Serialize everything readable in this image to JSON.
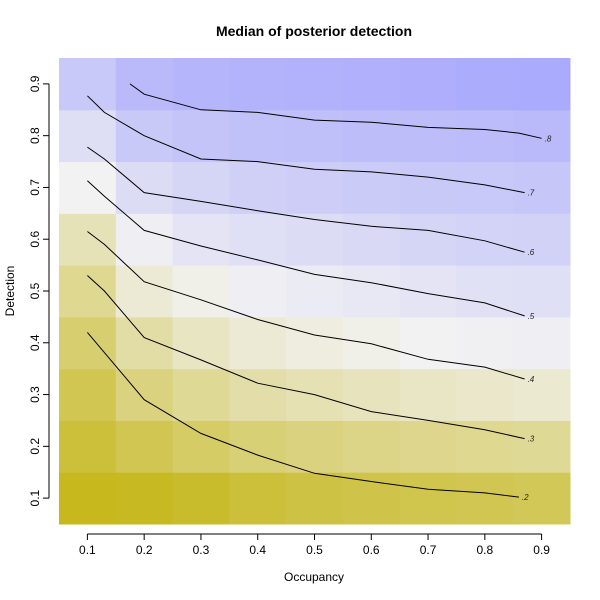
{
  "chart_data": {
    "type": "heatmap",
    "title": "Median of posterior detection",
    "xlabel": "Occupancy",
    "ylabel": "Detection",
    "xlim": [
      0.05,
      0.95
    ],
    "ylim": [
      0.05,
      0.95
    ],
    "x_ticks": [
      "0.1",
      "0.2",
      "0.3",
      "0.4",
      "0.5",
      "0.6",
      "0.7",
      "0.8",
      "0.9"
    ],
    "y_ticks": [
      "0.1",
      "0.2",
      "0.3",
      "0.4",
      "0.5",
      "0.6",
      "0.7",
      "0.8",
      "0.9"
    ],
    "grid": false,
    "legend": "none",
    "colors": {
      "low": "#c0b000",
      "mid": "#f2f2f2",
      "high": "#9d9dff"
    },
    "cell_x": [
      0.1,
      0.2,
      0.3,
      0.4,
      0.5,
      0.6,
      0.7,
      0.8,
      0.9
    ],
    "cell_y": [
      0.1,
      0.2,
      0.3,
      0.4,
      0.5,
      0.6,
      0.7,
      0.8,
      0.9
    ],
    "z": [
      [
        0.06,
        0.07,
        0.09,
        0.12,
        0.14,
        0.15,
        0.16,
        0.17,
        0.18
      ],
      [
        0.12,
        0.17,
        0.21,
        0.24,
        0.26,
        0.28,
        0.29,
        0.3,
        0.31
      ],
      [
        0.17,
        0.26,
        0.31,
        0.35,
        0.37,
        0.39,
        0.41,
        0.42,
        0.43
      ],
      [
        0.23,
        0.34,
        0.4,
        0.44,
        0.46,
        0.48,
        0.5,
        0.51,
        0.52
      ],
      [
        0.3,
        0.44,
        0.48,
        0.52,
        0.54,
        0.56,
        0.58,
        0.6,
        0.61
      ],
      [
        0.38,
        0.52,
        0.58,
        0.61,
        0.63,
        0.65,
        0.67,
        0.68,
        0.69
      ],
      [
        0.5,
        0.63,
        0.67,
        0.7,
        0.72,
        0.73,
        0.74,
        0.75,
        0.76
      ],
      [
        0.62,
        0.74,
        0.77,
        0.79,
        0.8,
        0.81,
        0.81,
        0.82,
        0.83
      ],
      [
        0.75,
        0.83,
        0.86,
        0.87,
        0.88,
        0.89,
        0.9,
        0.91,
        0.92
      ]
    ],
    "contours": [
      {
        "label": "0.2",
        "points": [
          [
            0.1,
            0.42
          ],
          [
            0.2,
            0.29
          ],
          [
            0.3,
            0.225
          ],
          [
            0.4,
            0.183
          ],
          [
            0.5,
            0.148
          ],
          [
            0.6,
            0.132
          ],
          [
            0.7,
            0.117
          ],
          [
            0.8,
            0.11
          ],
          [
            0.86,
            0.102
          ]
        ]
      },
      {
        "label": "0.3",
        "points": [
          [
            0.1,
            0.53
          ],
          [
            0.13,
            0.5
          ],
          [
            0.2,
            0.41
          ],
          [
            0.3,
            0.367
          ],
          [
            0.4,
            0.322
          ],
          [
            0.5,
            0.3
          ],
          [
            0.6,
            0.267
          ],
          [
            0.7,
            0.25
          ],
          [
            0.8,
            0.232
          ],
          [
            0.87,
            0.215
          ]
        ]
      },
      {
        "label": "0.4",
        "points": [
          [
            0.1,
            0.615
          ],
          [
            0.13,
            0.59
          ],
          [
            0.2,
            0.518
          ],
          [
            0.3,
            0.483
          ],
          [
            0.4,
            0.445
          ],
          [
            0.5,
            0.415
          ],
          [
            0.6,
            0.398
          ],
          [
            0.7,
            0.368
          ],
          [
            0.8,
            0.353
          ],
          [
            0.87,
            0.33
          ]
        ]
      },
      {
        "label": "0.5",
        "points": [
          [
            0.1,
            0.713
          ],
          [
            0.13,
            0.683
          ],
          [
            0.2,
            0.617
          ],
          [
            0.3,
            0.587
          ],
          [
            0.4,
            0.56
          ],
          [
            0.5,
            0.532
          ],
          [
            0.6,
            0.516
          ],
          [
            0.7,
            0.495
          ],
          [
            0.8,
            0.477
          ],
          [
            0.87,
            0.452
          ]
        ]
      },
      {
        "label": "0.6",
        "points": [
          [
            0.1,
            0.778
          ],
          [
            0.13,
            0.755
          ],
          [
            0.2,
            0.69
          ],
          [
            0.3,
            0.673
          ],
          [
            0.4,
            0.655
          ],
          [
            0.5,
            0.638
          ],
          [
            0.6,
            0.625
          ],
          [
            0.7,
            0.617
          ],
          [
            0.8,
            0.597
          ],
          [
            0.87,
            0.575
          ]
        ]
      },
      {
        "label": "0.7",
        "points": [
          [
            0.1,
            0.877
          ],
          [
            0.13,
            0.845
          ],
          [
            0.2,
            0.8
          ],
          [
            0.3,
            0.755
          ],
          [
            0.4,
            0.75
          ],
          [
            0.5,
            0.735
          ],
          [
            0.6,
            0.73
          ],
          [
            0.7,
            0.72
          ],
          [
            0.8,
            0.705
          ],
          [
            0.87,
            0.69
          ]
        ]
      },
      {
        "label": "0.8",
        "points": [
          [
            0.175,
            0.9
          ],
          [
            0.2,
            0.88
          ],
          [
            0.3,
            0.85
          ],
          [
            0.4,
            0.845
          ],
          [
            0.5,
            0.83
          ],
          [
            0.6,
            0.826
          ],
          [
            0.7,
            0.816
          ],
          [
            0.8,
            0.812
          ],
          [
            0.86,
            0.805
          ],
          [
            0.9,
            0.795
          ]
        ]
      }
    ]
  }
}
